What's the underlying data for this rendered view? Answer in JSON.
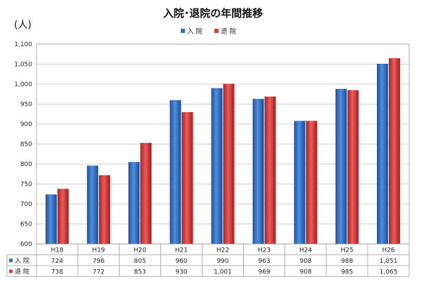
{
  "chart_data": {
    "type": "bar",
    "title": "入院･退院の年間推移",
    "ylabel": "(人)",
    "categories": [
      "H18",
      "H19",
      "H20",
      "H21",
      "H22",
      "H23",
      "H24",
      "H25",
      "H26"
    ],
    "series": [
      {
        "name": "入 院",
        "color": "#2e6fc9",
        "values": [
          724,
          796,
          805,
          960,
          990,
          963,
          908,
          988,
          1051
        ],
        "labels": [
          "724",
          "796",
          "805",
          "960",
          "990",
          "963",
          "908",
          "988",
          "1,051"
        ]
      },
      {
        "name": "退 院",
        "color": "#d63b3b",
        "values": [
          738,
          772,
          853,
          930,
          1001,
          969,
          908,
          985,
          1065
        ],
        "labels": [
          "738",
          "772",
          "853",
          "930",
          "1,001",
          "969",
          "908",
          "985",
          "1,065"
        ]
      }
    ],
    "ylim": [
      600,
      1100
    ],
    "yticks": [
      600,
      650,
      700,
      750,
      800,
      850,
      900,
      950,
      1000,
      1050,
      1100
    ],
    "ytick_labels": [
      "600",
      "650",
      "700",
      "750",
      "800",
      "850",
      "900",
      "950",
      "1,000",
      "1,050",
      "1,100"
    ],
    "grid": true,
    "legend_position": "top-center",
    "data_table": true
  }
}
